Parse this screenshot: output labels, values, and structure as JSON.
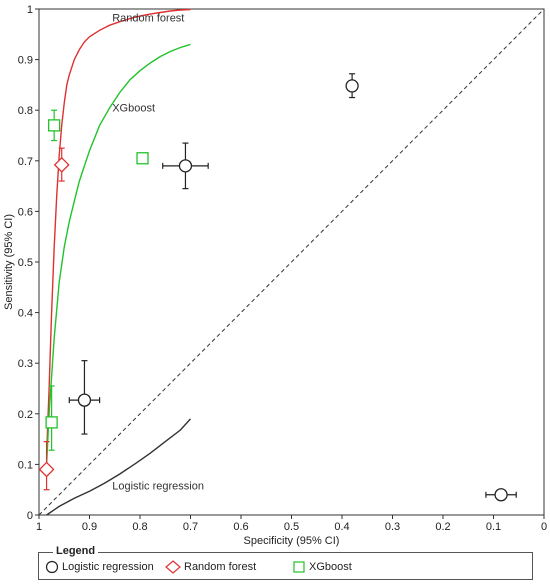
{
  "chart_data": {
    "type": "scatter",
    "title": "",
    "xlabel": "Specificity (95% CI)",
    "ylabel": "Sensitivity (95% CI)",
    "xlim": [
      1,
      0
    ],
    "ylim": [
      0,
      1
    ],
    "x_ticks": [
      "1",
      "0.9",
      "0.8",
      "0.7",
      "0.6",
      "0.5",
      "0.4",
      "0.3",
      "0.2",
      "0.1",
      "0"
    ],
    "y_ticks": [
      "0",
      "0.1",
      "0.2",
      "0.3",
      "0.4",
      "0.5",
      "0.6",
      "0.7",
      "0.8",
      "0.9",
      "1"
    ],
    "grid": false,
    "legend_placement": "bottom",
    "reference_line": "diagonal",
    "curves": [
      {
        "label": "Random forest",
        "color": "#e03030",
        "x": [
          0.985,
          0.98,
          0.975,
          0.97,
          0.965,
          0.96,
          0.955,
          0.95,
          0.945,
          0.94,
          0.93,
          0.92,
          0.91,
          0.9,
          0.88,
          0.86,
          0.84,
          0.82,
          0.8,
          0.78,
          0.76,
          0.74,
          0.72,
          0.7
        ],
        "y": [
          0.12,
          0.25,
          0.4,
          0.53,
          0.63,
          0.71,
          0.77,
          0.815,
          0.85,
          0.87,
          0.9,
          0.92,
          0.935,
          0.945,
          0.958,
          0.968,
          0.975,
          0.981,
          0.986,
          0.99,
          0.993,
          0.996,
          0.998,
          0.999
        ]
      },
      {
        "label": "XGboost",
        "color": "#22c22a",
        "x": [
          0.985,
          0.98,
          0.97,
          0.96,
          0.95,
          0.94,
          0.93,
          0.92,
          0.9,
          0.88,
          0.86,
          0.84,
          0.82,
          0.8,
          0.78,
          0.76,
          0.74,
          0.72,
          0.7
        ],
        "y": [
          0.1,
          0.2,
          0.35,
          0.46,
          0.53,
          0.58,
          0.62,
          0.66,
          0.72,
          0.77,
          0.805,
          0.835,
          0.86,
          0.878,
          0.893,
          0.906,
          0.916,
          0.924,
          0.93
        ]
      },
      {
        "label": "Logistic regression",
        "color": "#333333",
        "x": [
          0.985,
          0.96,
          0.93,
          0.9,
          0.87,
          0.84,
          0.81,
          0.78,
          0.75,
          0.72,
          0.7
        ],
        "y": [
          0.0,
          0.017,
          0.033,
          0.047,
          0.063,
          0.081,
          0.101,
          0.122,
          0.145,
          0.168,
          0.19
        ]
      }
    ],
    "series": [
      {
        "name": "Logistic regression",
        "marker": "circle",
        "color": "#222222",
        "points": [
          {
            "x": 0.38,
            "y": 0.848,
            "xerr": [
              0.373,
              0.387
            ],
            "yerr": [
              0.825,
              0.872
            ]
          },
          {
            "x": 0.71,
            "y": 0.69,
            "xerr": [
              0.665,
              0.755
            ],
            "yerr": [
              0.645,
              0.735
            ]
          },
          {
            "x": 0.91,
            "y": 0.227,
            "xerr": [
              0.88,
              0.94
            ],
            "yerr": [
              0.16,
              0.305
            ]
          },
          {
            "x": 0.085,
            "y": 0.04,
            "xerr": [
              0.055,
              0.115
            ],
            "yerr": [
              0.035,
              0.045
            ]
          }
        ]
      },
      {
        "name": "Random forest",
        "marker": "diamond",
        "color": "#e03030",
        "points": [
          {
            "x": 0.955,
            "y": 0.692,
            "xerr": [
              0.95,
              0.96
            ],
            "yerr": [
              0.66,
              0.725
            ]
          },
          {
            "x": 0.985,
            "y": 0.09,
            "xerr": [
              0.98,
              0.99
            ],
            "yerr": [
              0.05,
              0.145
            ]
          }
        ]
      },
      {
        "name": "XGboost",
        "marker": "square",
        "color": "#22c22a",
        "points": [
          {
            "x": 0.97,
            "y": 0.77,
            "xerr": [
              0.965,
              0.975
            ],
            "yerr": [
              0.74,
              0.8
            ]
          },
          {
            "x": 0.795,
            "y": 0.705,
            "xerr": [
              0.795,
              0.795
            ],
            "yerr": [
              0.705,
              0.705
            ]
          },
          {
            "x": 0.975,
            "y": 0.183,
            "xerr": [
              0.965,
              0.985
            ],
            "yerr": [
              0.128,
              0.255
            ]
          }
        ]
      }
    ]
  },
  "legend": {
    "title": "Legend",
    "items": [
      {
        "label": "Logistic regression",
        "marker": "circle",
        "color": "#222222"
      },
      {
        "label": "Random forest",
        "marker": "diamond",
        "color": "#e03030"
      },
      {
        "label": "XGboost",
        "marker": "square",
        "color": "#22c22a"
      }
    ]
  }
}
